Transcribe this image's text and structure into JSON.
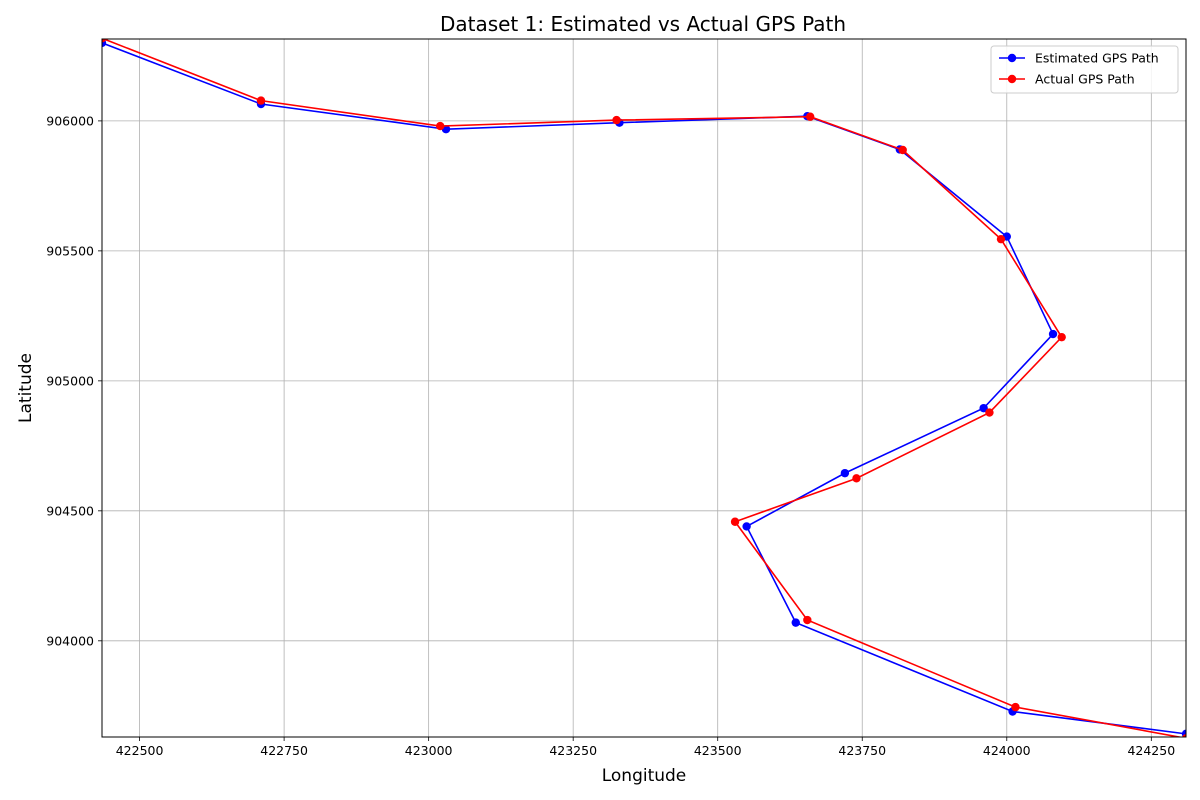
{
  "chart_data": {
    "type": "line",
    "title": "Dataset 1: Estimated vs Actual GPS Path",
    "xlabel": "Longitude",
    "ylabel": "Latitude",
    "xlim": [
      422435,
      424310
    ],
    "ylim": [
      903630,
      906315
    ],
    "xticks": [
      422500,
      422750,
      423000,
      423250,
      423500,
      423750,
      424000,
      424250
    ],
    "yticks": [
      904000,
      904500,
      905000,
      905500,
      906000
    ],
    "grid": true,
    "legend_position": "top-right",
    "series": [
      {
        "name": "Estimated GPS Path",
        "color": "#0000ff",
        "points": [
          [
            422435,
            906300
          ],
          [
            422710,
            906065
          ],
          [
            423030,
            905968
          ],
          [
            423330,
            905993
          ],
          [
            423655,
            906018
          ],
          [
            423815,
            905890
          ],
          [
            424000,
            905555
          ],
          [
            424080,
            905180
          ],
          [
            423960,
            904895
          ],
          [
            423720,
            904645
          ],
          [
            423550,
            904440
          ],
          [
            423635,
            904070
          ],
          [
            424010,
            903728
          ],
          [
            424310,
            903642
          ]
        ]
      },
      {
        "name": "Actual GPS Path",
        "color": "#ff0000",
        "points": [
          [
            422435,
            906318
          ],
          [
            422710,
            906078
          ],
          [
            423020,
            905980
          ],
          [
            423325,
            906003
          ],
          [
            423660,
            906016
          ],
          [
            423820,
            905888
          ],
          [
            423990,
            905545
          ],
          [
            424095,
            905168
          ],
          [
            423970,
            904878
          ],
          [
            423740,
            904625
          ],
          [
            423530,
            904458
          ],
          [
            423655,
            904080
          ],
          [
            424015,
            903745
          ],
          [
            424310,
            903625
          ]
        ]
      }
    ]
  }
}
